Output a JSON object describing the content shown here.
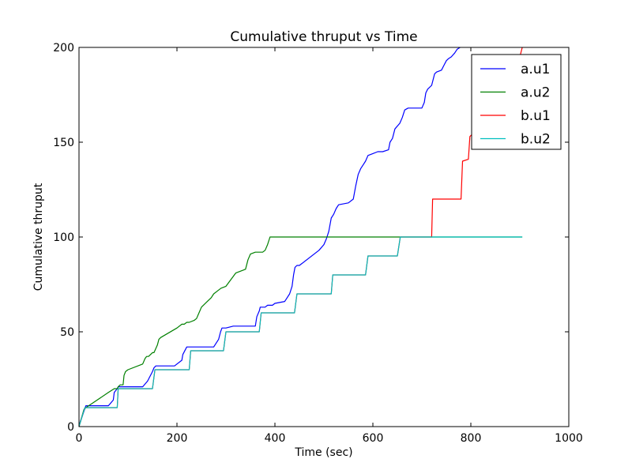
{
  "chart_data": {
    "type": "line",
    "title": "Cumulative thruput vs Time",
    "xlabel": "Time (sec)",
    "ylabel": "Cumulative thruput",
    "xlim": [
      0,
      1000
    ],
    "ylim": [
      0,
      200
    ],
    "xticks": [
      "0",
      "200",
      "400",
      "600",
      "800",
      "1000"
    ],
    "yticks": [
      "0",
      "50",
      "100",
      "150",
      "200"
    ],
    "xtick_values": [
      0,
      200,
      400,
      600,
      800,
      1000
    ],
    "ytick_values": [
      0,
      50,
      100,
      150,
      200
    ],
    "grid": false,
    "legend": "top-right",
    "series": [
      {
        "name": "a.u1",
        "color": "#0000ff",
        "x": [
          0,
          3,
          6,
          10,
          14,
          60,
          70,
          72,
          78,
          80,
          85,
          130,
          140,
          150,
          153,
          157,
          195,
          210,
          212,
          220,
          223,
          228,
          230,
          275,
          285,
          289,
          292,
          296,
          300,
          315,
          320,
          360,
          363,
          368,
          370,
          380,
          385,
          395,
          400,
          420,
          425,
          430,
          435,
          438,
          441,
          445,
          450,
          490,
          500,
          505,
          510,
          515,
          520,
          525,
          530,
          550,
          560,
          565,
          570,
          575,
          580,
          585,
          590,
          600,
          610,
          620,
          632,
          635,
          640,
          645,
          655,
          660,
          665,
          672,
          700,
          705,
          708,
          712,
          720,
          726,
          730,
          740,
          746,
          750,
          754,
          760,
          767,
          772,
          778
        ],
        "y": [
          0,
          3,
          5,
          8,
          11,
          11,
          14,
          18,
          20,
          21,
          21,
          21,
          24,
          29,
          31,
          32,
          32,
          35,
          38,
          42,
          42,
          42,
          42,
          42,
          46,
          50,
          52,
          52,
          52,
          53,
          53,
          53,
          58,
          61,
          63,
          63,
          64,
          64,
          65,
          66,
          68,
          70,
          74,
          80,
          84,
          85,
          85,
          93,
          96,
          99,
          103,
          110,
          112,
          115,
          117,
          118,
          120,
          127,
          133,
          136,
          138,
          140,
          143,
          144,
          145,
          145,
          146,
          150,
          152,
          157,
          160,
          163,
          167,
          168,
          168,
          171,
          176,
          178,
          180,
          186,
          187,
          188,
          191,
          193,
          194,
          195,
          197,
          199,
          200
        ]
      },
      {
        "name": "a.u2",
        "color": "#008000",
        "x": [
          0,
          10,
          14,
          60,
          66,
          72,
          78,
          80,
          84,
          86,
          90,
          92,
          95,
          100,
          130,
          135,
          138,
          142,
          150,
          153,
          160,
          163,
          167,
          200,
          210,
          215,
          220,
          225,
          235,
          240,
          245,
          250,
          262,
          270,
          275,
          285,
          290,
          300,
          320,
          340,
          345,
          350,
          360,
          365,
          375,
          380,
          385,
          390,
          400,
          905
        ],
        "y": [
          0,
          9,
          10,
          18,
          19,
          20,
          20,
          21,
          22,
          22,
          22,
          27,
          29,
          30,
          33,
          36,
          37,
          37,
          39,
          39,
          43,
          46,
          47,
          52,
          54,
          54,
          55,
          55,
          56,
          57,
          60,
          63,
          66,
          68,
          70,
          72,
          73,
          74,
          81,
          83,
          88,
          91,
          92,
          92,
          92,
          93,
          96,
          100,
          100,
          100
        ]
      },
      {
        "name": "b.u1",
        "color": "#ff0000",
        "x": [
          0,
          12,
          14,
          78,
          80,
          150,
          155,
          225,
          228,
          295,
          300,
          368,
          372,
          440,
          445,
          515,
          518,
          585,
          590,
          650,
          656,
          720,
          722,
          780,
          783,
          795,
          798,
          810,
          830,
          850,
          875,
          900,
          905
        ],
        "y": [
          0,
          10,
          10,
          10,
          20,
          20,
          30,
          30,
          40,
          40,
          50,
          50,
          60,
          60,
          70,
          70,
          80,
          80,
          90,
          90,
          100,
          100,
          120,
          120,
          140,
          141,
          153,
          156,
          160,
          170,
          180,
          195,
          200
        ]
      },
      {
        "name": "b.u2",
        "color": "#00bfbf",
        "x": [
          0,
          12,
          14,
          78,
          80,
          150,
          155,
          225,
          228,
          295,
          300,
          368,
          372,
          440,
          445,
          515,
          518,
          585,
          590,
          650,
          656,
          905
        ],
        "y": [
          0,
          10,
          10,
          10,
          20,
          20,
          30,
          30,
          40,
          40,
          50,
          50,
          60,
          60,
          70,
          70,
          80,
          80,
          90,
          90,
          100,
          100
        ]
      }
    ]
  }
}
